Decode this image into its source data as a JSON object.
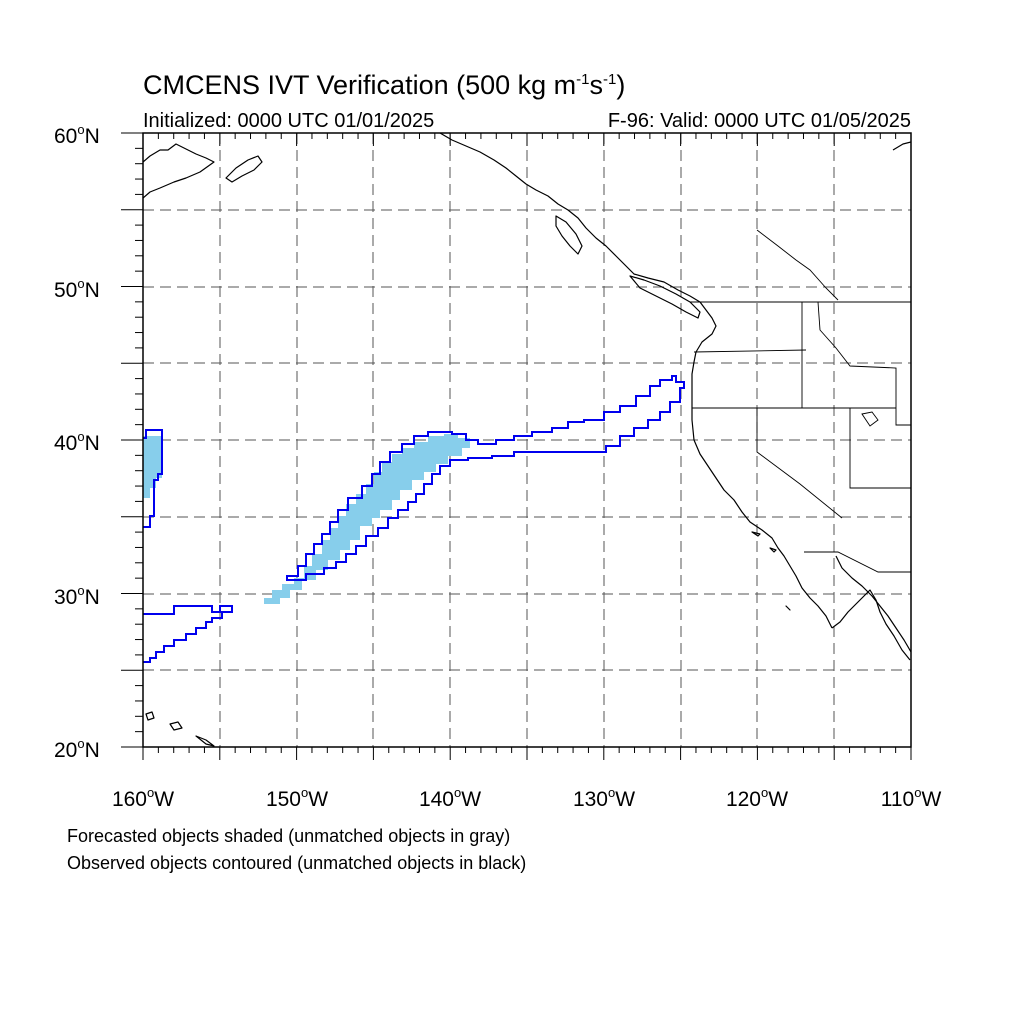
{
  "title": {
    "prefix": "CMCENS IVT Verification (500 kg m",
    "exp1": "-1",
    "mid": "s",
    "exp2": "-1",
    "suffix": ")"
  },
  "subtitle": {
    "initialized": "Initialized: 0000 UTC 01/01/2025",
    "valid": "F-96: Valid: 0000 UTC 01/05/2025"
  },
  "axes": {
    "lat_labels": [
      {
        "num": "60",
        "hem": "N"
      },
      {
        "num": "50",
        "hem": "N"
      },
      {
        "num": "40",
        "hem": "N"
      },
      {
        "num": "30",
        "hem": "N"
      },
      {
        "num": "20",
        "hem": "N"
      }
    ],
    "lon_labels": [
      {
        "num": "160",
        "hem": "W"
      },
      {
        "num": "150",
        "hem": "W"
      },
      {
        "num": "140",
        "hem": "W"
      },
      {
        "num": "130",
        "hem": "W"
      },
      {
        "num": "120",
        "hem": "W"
      },
      {
        "num": "110",
        "hem": "W"
      }
    ],
    "lat_range": [
      20,
      60
    ],
    "lon_range": [
      -160,
      -110
    ],
    "grid_spacing_deg": 5,
    "grid": true
  },
  "notes": {
    "forecast": "Forecasted objects shaded (unmatched objects in gray)",
    "observed": "Observed objects contoured (unmatched objects in black)"
  },
  "colors": {
    "forecast_fill": "#87ceeb",
    "observed_contour": "#0000ee",
    "coastline": "#000000",
    "grid": "#555555"
  },
  "objects": {
    "forecast_shaded": [
      {
        "region": "main-atmospheric-river",
        "lat_range": [
          29.5,
          40.0
        ],
        "lon_range": [
          -152,
          -138
        ]
      },
      {
        "region": "west-edge",
        "lat_range": [
          36.5,
          40.5
        ],
        "lon_range": [
          -160,
          -158.8
        ]
      }
    ],
    "observed_contoured": [
      {
        "region": "main-atmospheric-river",
        "lat_range": [
          31.0,
          44.2
        ],
        "lon_range": [
          -151,
          -124.8
        ]
      },
      {
        "region": "west-edge-north",
        "lat_range": [
          34.5,
          40.8
        ],
        "lon_range": [
          -160,
          -158.8
        ]
      },
      {
        "region": "west-edge-south",
        "lat_range": [
          25.3,
          29.3
        ],
        "lon_range": [
          -160,
          -154
        ]
      }
    ]
  }
}
